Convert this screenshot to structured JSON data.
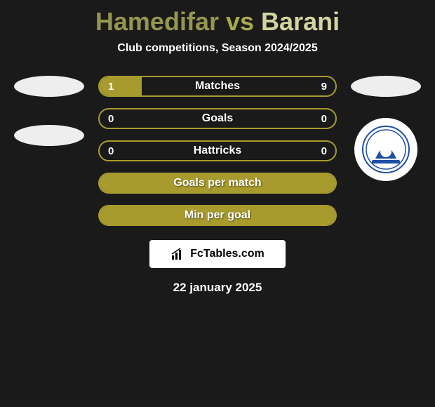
{
  "title": {
    "player_a": "Hamedifar",
    "vs": "vs",
    "player_b": "Barani"
  },
  "subtitle": "Club competitions, Season 2024/2025",
  "stats": [
    {
      "label": "Matches",
      "left_val": "1",
      "right_val": "9",
      "left_fill_pct": 18,
      "right_fill_pct": 0,
      "left_color": "#a89b2e",
      "right_color": "#a89b2e"
    },
    {
      "label": "Goals",
      "left_val": "0",
      "right_val": "0",
      "left_fill_pct": 0,
      "right_fill_pct": 0,
      "left_color": "#a89b2e",
      "right_color": "#a89b2e"
    },
    {
      "label": "Hattricks",
      "left_val": "0",
      "right_val": "0",
      "left_fill_pct": 0,
      "right_fill_pct": 0,
      "left_color": "#a89b2e",
      "right_color": "#a89b2e"
    },
    {
      "label": "Goals per match",
      "left_val": "",
      "right_val": "",
      "left_fill_pct": 100,
      "right_fill_pct": 0,
      "left_color": "#a89b2e",
      "right_color": "#a89b2e"
    },
    {
      "label": "Min per goal",
      "left_val": "",
      "right_val": "",
      "left_fill_pct": 100,
      "right_fill_pct": 0,
      "left_color": "#a89b2e",
      "right_color": "#a89b2e"
    }
  ],
  "colors": {
    "background": "#1a1a1a",
    "bar_border": "#a89b2e",
    "bar_fill": "#a89b2e",
    "player_a_color": "#96954f",
    "player_b_color": "#d4d4a0",
    "avatar_ellipse": "#eeeeee",
    "badge_bg": "#ffffff",
    "badge_primary": "#1e4fa3"
  },
  "logo_text": "FcTables.com",
  "date": "22 january 2025"
}
